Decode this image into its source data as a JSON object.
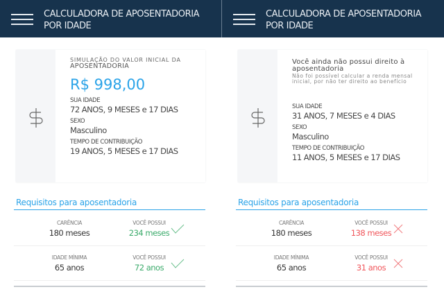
{
  "header": {
    "title_line1": "CALCULADORA DE APOSENTADORIA",
    "title_line2": "POR IDADE"
  },
  "colors": {
    "header_bg": "#17334d",
    "accent": "#2aa3e8",
    "success": "#3aaa6a",
    "error": "#f0555a"
  },
  "panels": [
    {
      "caption_line1": "SIMULAÇÃO DO VALOR INICIAL DA",
      "caption_line2": "APOSENTADORIA",
      "amount": "R$ 998,00",
      "idade_label": "SUA IDADE",
      "idade": "72 ANOS, 9 MESES e 17 DIAS",
      "sexo_label": "SEXO",
      "sexo": "Masculino",
      "tempo_label": "TEMPO DE CONTRIBUIÇÃO",
      "tempo": "19 ANOS, 5 MESES e 17 DIAS",
      "req_title": "Requisitos para aposentadoria",
      "rows": [
        {
          "label": "CARÊNCIA",
          "required": "180 meses",
          "have_label": "VOCÊ POSSUI",
          "have": "234 meses",
          "status": "check-icon"
        },
        {
          "label": "IDADE MÍNIMA",
          "required": "65 anos",
          "have_label": "VOCÊ POSSUI",
          "have": "72 anos",
          "status": "check-icon"
        }
      ]
    },
    {
      "warning": "Você ainda não possui direito à aposentadoria",
      "warning_sub": "Não foi possível calcular a renda mensal inicial, por não ter direito ao benefício",
      "idade_label": "SUA IDADE",
      "idade": "31 ANOS, 7 MESES e 4 DIAS",
      "sexo_label": "SEXO",
      "sexo": "Masculino",
      "tempo_label": "TEMPO DE CONTRIBUIÇÃO",
      "tempo": "11 ANOS, 5 MESES e 17 DIAS",
      "req_title": "Requisitos para aposentadoria",
      "rows": [
        {
          "label": "CARÊNCIA",
          "required": "180 meses",
          "have_label": "VOCÊ POSSUI",
          "have": "138 meses",
          "status": "x-icon"
        },
        {
          "label": "IDADE MÍNIMA",
          "required": "65 anos",
          "have_label": "VOCÊ POSSUI",
          "have": "31 anos",
          "status": "x-icon"
        }
      ]
    }
  ]
}
